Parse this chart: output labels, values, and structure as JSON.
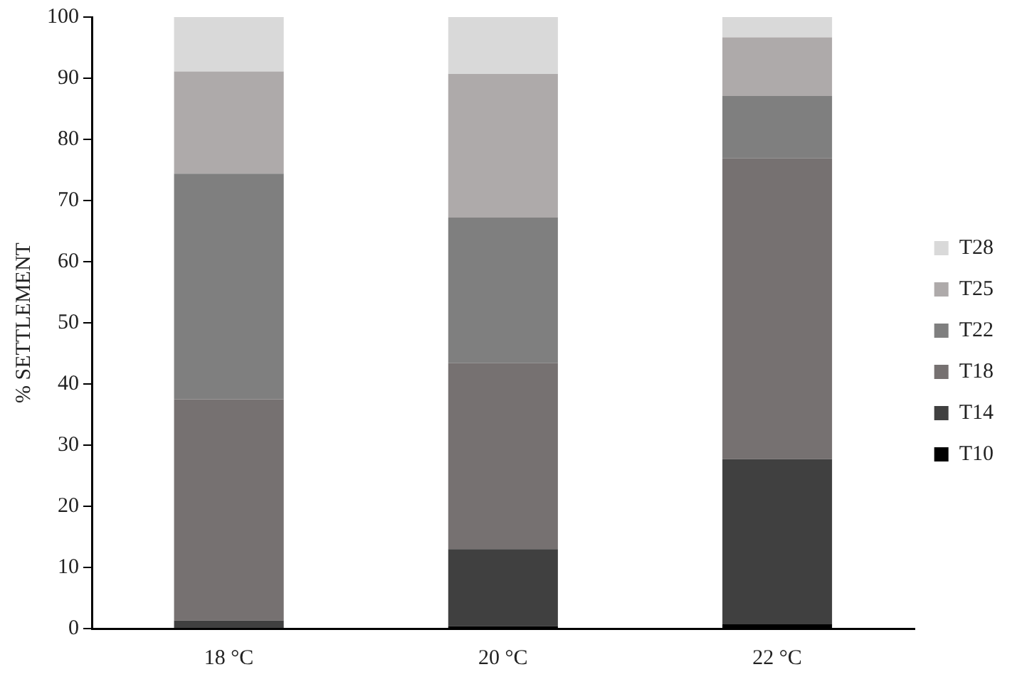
{
  "chart_data": {
    "type": "bar",
    "stacked": true,
    "ylabel": "% SETTLEMENT",
    "categories": [
      "18 °C",
      "20 °C",
      "22 °C"
    ],
    "series": [
      {
        "name": "T10",
        "color": "#000000",
        "values": [
          0,
          0.4,
          0.7
        ]
      },
      {
        "name": "T14",
        "color": "#404040",
        "values": [
          1.3,
          12.6,
          27.0
        ]
      },
      {
        "name": "T18",
        "color": "#767171",
        "values": [
          36.2,
          30.4,
          49.2
        ]
      },
      {
        "name": "T22",
        "color": "#7f7f7f",
        "values": [
          36.9,
          23.8,
          10.2
        ]
      },
      {
        "name": "T25",
        "color": "#aeaaaa",
        "values": [
          16.7,
          23.5,
          9.6
        ]
      },
      {
        "name": "T28",
        "color": "#d9d9d9",
        "values": [
          8.9,
          9.3,
          3.3
        ]
      }
    ],
    "ylim": [
      0,
      100
    ],
    "yticks": [
      0,
      10,
      20,
      30,
      40,
      50,
      60,
      70,
      80,
      90,
      100
    ],
    "grid": false,
    "legend": "right"
  }
}
